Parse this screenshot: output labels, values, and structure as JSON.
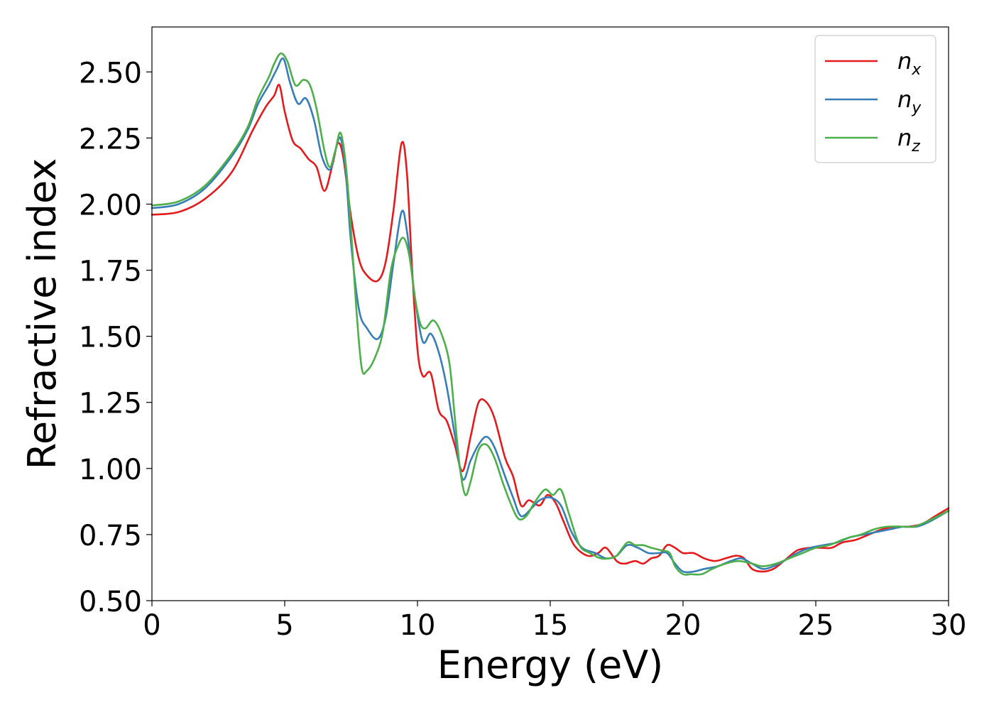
{
  "chart_data": {
    "type": "line",
    "title": "",
    "xlabel": "Energy (eV)",
    "ylabel": "Refractive index",
    "xlim": [
      0,
      30
    ],
    "ylim": [
      0.5,
      2.67
    ],
    "x_ticks": [
      0,
      5,
      10,
      15,
      20,
      25,
      30
    ],
    "x_tick_labels": [
      "0",
      "5",
      "10",
      "15",
      "20",
      "25",
      "30"
    ],
    "y_ticks": [
      0.5,
      0.75,
      1.0,
      1.25,
      1.5,
      1.75,
      2.0,
      2.25,
      2.5
    ],
    "y_tick_labels": [
      "0.50",
      "0.75",
      "1.00",
      "1.25",
      "1.50",
      "1.75",
      "2.00",
      "2.25",
      "2.50"
    ],
    "grid": false,
    "legend_position": "top-right",
    "series": [
      {
        "name": "n_x",
        "label_main": "n",
        "label_sub": "x",
        "color": "#e41a1c",
        "points": [
          [
            0,
            1.96
          ],
          [
            1,
            1.97
          ],
          [
            2,
            2.02
          ],
          [
            3,
            2.12
          ],
          [
            3.8,
            2.28
          ],
          [
            4.3,
            2.37
          ],
          [
            4.6,
            2.41
          ],
          [
            4.8,
            2.45
          ],
          [
            5.0,
            2.35
          ],
          [
            5.3,
            2.24
          ],
          [
            5.6,
            2.21
          ],
          [
            5.9,
            2.17
          ],
          [
            6.2,
            2.14
          ],
          [
            6.5,
            2.05
          ],
          [
            6.8,
            2.15
          ],
          [
            7.0,
            2.23
          ],
          [
            7.2,
            2.18
          ],
          [
            7.5,
            1.95
          ],
          [
            7.8,
            1.79
          ],
          [
            8.1,
            1.73
          ],
          [
            8.5,
            1.71
          ],
          [
            8.8,
            1.78
          ],
          [
            9.1,
            1.98
          ],
          [
            9.4,
            2.23
          ],
          [
            9.6,
            2.12
          ],
          [
            9.8,
            1.75
          ],
          [
            10.0,
            1.45
          ],
          [
            10.2,
            1.35
          ],
          [
            10.5,
            1.36
          ],
          [
            10.8,
            1.22
          ],
          [
            11.1,
            1.18
          ],
          [
            11.4,
            1.09
          ],
          [
            11.7,
            0.99
          ],
          [
            12.0,
            1.12
          ],
          [
            12.3,
            1.25
          ],
          [
            12.6,
            1.25
          ],
          [
            12.9,
            1.19
          ],
          [
            13.3,
            1.04
          ],
          [
            13.6,
            0.97
          ],
          [
            13.9,
            0.86
          ],
          [
            14.2,
            0.88
          ],
          [
            14.6,
            0.86
          ],
          [
            14.9,
            0.9
          ],
          [
            15.2,
            0.87
          ],
          [
            15.5,
            0.8
          ],
          [
            15.9,
            0.71
          ],
          [
            16.4,
            0.67
          ],
          [
            16.8,
            0.68
          ],
          [
            17.1,
            0.7
          ],
          [
            17.5,
            0.65
          ],
          [
            17.8,
            0.64
          ],
          [
            18.2,
            0.65
          ],
          [
            18.5,
            0.64
          ],
          [
            18.8,
            0.66
          ],
          [
            19.1,
            0.67
          ],
          [
            19.4,
            0.71
          ],
          [
            19.7,
            0.7
          ],
          [
            20.0,
            0.68
          ],
          [
            20.4,
            0.68
          ],
          [
            20.8,
            0.66
          ],
          [
            21.2,
            0.65
          ],
          [
            21.6,
            0.66
          ],
          [
            22.0,
            0.67
          ],
          [
            22.3,
            0.66
          ],
          [
            22.6,
            0.62
          ],
          [
            23.0,
            0.61
          ],
          [
            23.4,
            0.62
          ],
          [
            23.8,
            0.65
          ],
          [
            24.3,
            0.69
          ],
          [
            24.8,
            0.7
          ],
          [
            25.2,
            0.7
          ],
          [
            25.6,
            0.7
          ],
          [
            26.0,
            0.72
          ],
          [
            26.5,
            0.73
          ],
          [
            27.0,
            0.75
          ],
          [
            27.5,
            0.77
          ],
          [
            28.0,
            0.78
          ],
          [
            28.5,
            0.78
          ],
          [
            29.0,
            0.79
          ],
          [
            29.5,
            0.82
          ],
          [
            30.0,
            0.85
          ]
        ]
      },
      {
        "name": "n_y",
        "label_main": "n",
        "label_sub": "y",
        "color": "#377eb8",
        "points": [
          [
            0,
            1.985
          ],
          [
            1,
            2.0
          ],
          [
            2,
            2.06
          ],
          [
            3,
            2.18
          ],
          [
            3.6,
            2.28
          ],
          [
            4.0,
            2.38
          ],
          [
            4.4,
            2.45
          ],
          [
            4.7,
            2.51
          ],
          [
            4.95,
            2.55
          ],
          [
            5.2,
            2.46
          ],
          [
            5.5,
            2.38
          ],
          [
            5.8,
            2.4
          ],
          [
            6.1,
            2.32
          ],
          [
            6.4,
            2.18
          ],
          [
            6.7,
            2.13
          ],
          [
            6.9,
            2.2
          ],
          [
            7.1,
            2.25
          ],
          [
            7.3,
            2.12
          ],
          [
            7.5,
            1.85
          ],
          [
            7.8,
            1.6
          ],
          [
            8.1,
            1.53
          ],
          [
            8.5,
            1.49
          ],
          [
            8.8,
            1.57
          ],
          [
            9.1,
            1.78
          ],
          [
            9.4,
            1.97
          ],
          [
            9.6,
            1.9
          ],
          [
            9.9,
            1.65
          ],
          [
            10.2,
            1.48
          ],
          [
            10.5,
            1.51
          ],
          [
            10.8,
            1.44
          ],
          [
            11.1,
            1.31
          ],
          [
            11.4,
            1.13
          ],
          [
            11.7,
            0.96
          ],
          [
            12.0,
            1.03
          ],
          [
            12.3,
            1.09
          ],
          [
            12.6,
            1.12
          ],
          [
            12.9,
            1.08
          ],
          [
            13.3,
            0.97
          ],
          [
            13.6,
            0.89
          ],
          [
            13.9,
            0.82
          ],
          [
            14.3,
            0.85
          ],
          [
            14.6,
            0.88
          ],
          [
            15.0,
            0.89
          ],
          [
            15.4,
            0.86
          ],
          [
            15.8,
            0.76
          ],
          [
            16.2,
            0.7
          ],
          [
            16.7,
            0.68
          ],
          [
            17.1,
            0.66
          ],
          [
            17.5,
            0.67
          ],
          [
            17.9,
            0.71
          ],
          [
            18.3,
            0.7
          ],
          [
            18.7,
            0.68
          ],
          [
            19.1,
            0.68
          ],
          [
            19.4,
            0.68
          ],
          [
            19.7,
            0.64
          ],
          [
            20.0,
            0.61
          ],
          [
            20.4,
            0.61
          ],
          [
            20.8,
            0.62
          ],
          [
            21.3,
            0.63
          ],
          [
            21.8,
            0.65
          ],
          [
            22.2,
            0.66
          ],
          [
            22.6,
            0.64
          ],
          [
            23.0,
            0.62
          ],
          [
            23.4,
            0.63
          ],
          [
            23.8,
            0.65
          ],
          [
            24.3,
            0.68
          ],
          [
            24.8,
            0.7
          ],
          [
            25.3,
            0.71
          ],
          [
            25.8,
            0.72
          ],
          [
            26.3,
            0.74
          ],
          [
            26.8,
            0.75
          ],
          [
            27.3,
            0.76
          ],
          [
            27.8,
            0.77
          ],
          [
            28.3,
            0.78
          ],
          [
            28.8,
            0.78
          ],
          [
            29.3,
            0.8
          ],
          [
            30.0,
            0.84
          ]
        ]
      },
      {
        "name": "n_z",
        "label_main": "n",
        "label_sub": "z",
        "color": "#4daf4a",
        "points": [
          [
            0,
            1.995
          ],
          [
            1,
            2.01
          ],
          [
            2,
            2.07
          ],
          [
            3,
            2.19
          ],
          [
            3.6,
            2.29
          ],
          [
            4.0,
            2.4
          ],
          [
            4.4,
            2.48
          ],
          [
            4.6,
            2.53
          ],
          [
            4.85,
            2.57
          ],
          [
            5.1,
            2.54
          ],
          [
            5.4,
            2.45
          ],
          [
            5.7,
            2.47
          ],
          [
            5.95,
            2.45
          ],
          [
            6.2,
            2.36
          ],
          [
            6.5,
            2.2
          ],
          [
            6.7,
            2.14
          ],
          [
            6.9,
            2.2
          ],
          [
            7.1,
            2.27
          ],
          [
            7.3,
            2.15
          ],
          [
            7.5,
            1.9
          ],
          [
            7.7,
            1.6
          ],
          [
            7.9,
            1.38
          ],
          [
            8.1,
            1.37
          ],
          [
            8.4,
            1.42
          ],
          [
            8.7,
            1.52
          ],
          [
            9.0,
            1.75
          ],
          [
            9.3,
            1.85
          ],
          [
            9.5,
            1.87
          ],
          [
            9.7,
            1.8
          ],
          [
            9.9,
            1.65
          ],
          [
            10.1,
            1.55
          ],
          [
            10.3,
            1.53
          ],
          [
            10.6,
            1.56
          ],
          [
            10.9,
            1.51
          ],
          [
            11.2,
            1.4
          ],
          [
            11.4,
            1.2
          ],
          [
            11.6,
            1.0
          ],
          [
            11.8,
            0.9
          ],
          [
            12.0,
            0.95
          ],
          [
            12.3,
            1.07
          ],
          [
            12.6,
            1.09
          ],
          [
            12.9,
            1.04
          ],
          [
            13.2,
            0.95
          ],
          [
            13.5,
            0.87
          ],
          [
            13.8,
            0.81
          ],
          [
            14.1,
            0.82
          ],
          [
            14.4,
            0.87
          ],
          [
            14.8,
            0.92
          ],
          [
            15.1,
            0.9
          ],
          [
            15.4,
            0.92
          ],
          [
            15.7,
            0.83
          ],
          [
            16.1,
            0.71
          ],
          [
            16.5,
            0.68
          ],
          [
            16.9,
            0.66
          ],
          [
            17.2,
            0.66
          ],
          [
            17.5,
            0.67
          ],
          [
            17.9,
            0.72
          ],
          [
            18.2,
            0.71
          ],
          [
            18.5,
            0.71
          ],
          [
            18.8,
            0.7
          ],
          [
            19.2,
            0.69
          ],
          [
            19.5,
            0.68
          ],
          [
            19.7,
            0.63
          ],
          [
            20.0,
            0.6
          ],
          [
            20.3,
            0.6
          ],
          [
            20.7,
            0.6
          ],
          [
            21.1,
            0.62
          ],
          [
            21.6,
            0.64
          ],
          [
            22.1,
            0.65
          ],
          [
            22.6,
            0.64
          ],
          [
            23.0,
            0.63
          ],
          [
            23.5,
            0.64
          ],
          [
            24.0,
            0.66
          ],
          [
            24.5,
            0.68
          ],
          [
            25.0,
            0.7
          ],
          [
            25.5,
            0.71
          ],
          [
            26.0,
            0.73
          ],
          [
            26.3,
            0.74
          ],
          [
            26.7,
            0.75
          ],
          [
            27.2,
            0.77
          ],
          [
            27.7,
            0.78
          ],
          [
            28.2,
            0.78
          ],
          [
            28.7,
            0.78
          ],
          [
            29.2,
            0.8
          ],
          [
            30.0,
            0.84
          ]
        ]
      }
    ]
  }
}
